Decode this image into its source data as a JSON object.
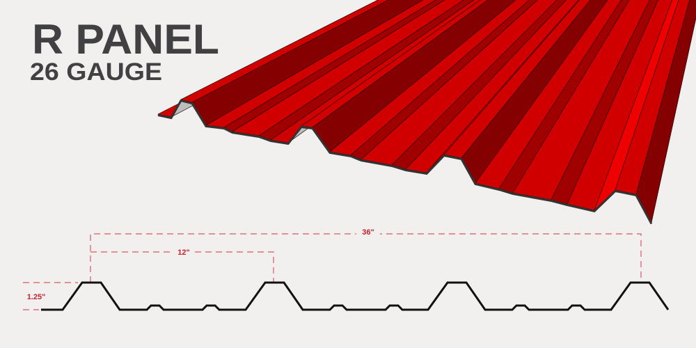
{
  "title": "R PANEL",
  "subtitle": "26 GAUGE",
  "dimensions": {
    "overall_width": "36\"",
    "rib_spacing": "12\"",
    "rib_height": "1.25\""
  },
  "colors": {
    "panel": "#d10000",
    "panel_shadow": "#850000",
    "panel_highlight": "#ee0000",
    "dimension": "#c8202a",
    "text": "#414143",
    "background": "#f2efef"
  }
}
